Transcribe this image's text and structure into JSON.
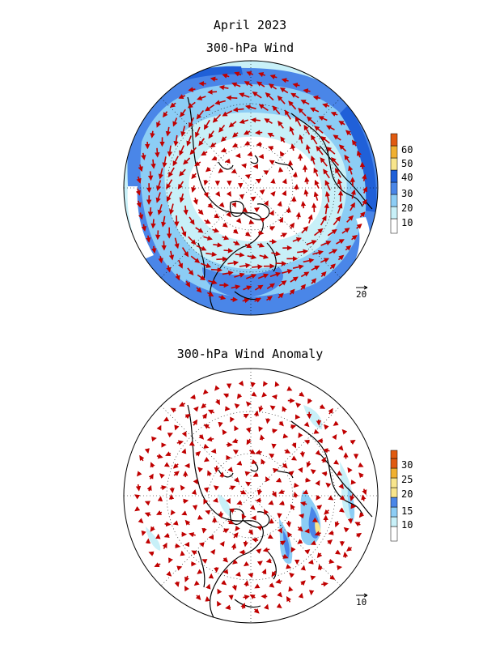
{
  "header": {
    "date": "April 2023",
    "panel1_title": "300-hPa Wind",
    "panel2_title": "300-hPa Wind Anomaly"
  },
  "panel1": {
    "reference_vector": "20",
    "colorbar_labels": [
      "10",
      "20",
      "30",
      "40",
      "50",
      "60"
    ],
    "colorbar_colors": [
      "#ffffff",
      "#c8f0f8",
      "#8ccdf5",
      "#4a86e8",
      "#2060d8",
      "#f8e58c",
      "#f0b030",
      "#e05a10"
    ]
  },
  "panel2": {
    "reference_vector": "10",
    "colorbar_labels": [
      "10",
      "15",
      "20",
      "25",
      "30"
    ],
    "colorbar_colors": [
      "#ffffff",
      "#c8f0f8",
      "#8ccdf5",
      "#4a86e8",
      "#f8e58c",
      "#f0b030",
      "#e05a10"
    ]
  },
  "colors": {
    "vector": "#c00000",
    "coast": "#000000"
  }
}
